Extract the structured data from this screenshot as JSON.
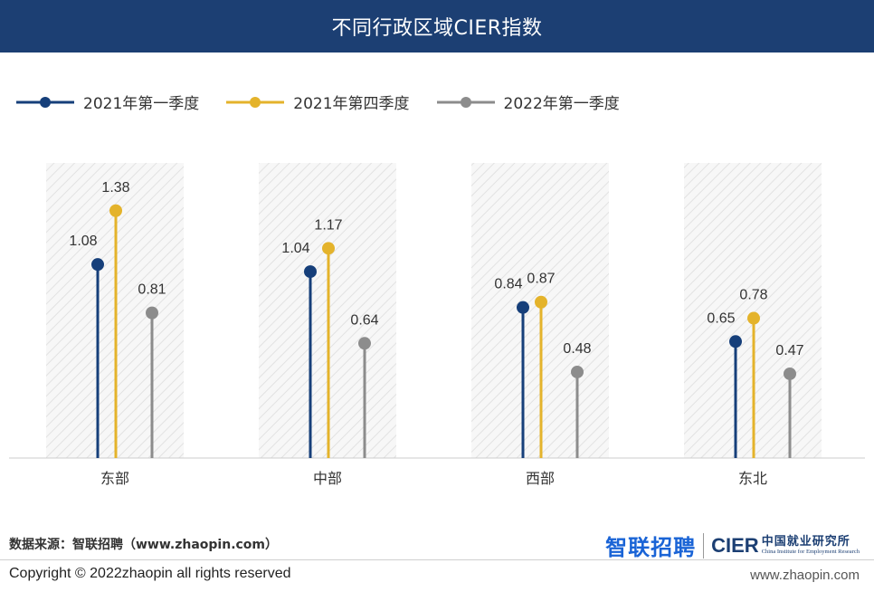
{
  "header": {
    "title": "不同行政区域CIER指数"
  },
  "colors": {
    "header_bg": "#1c3f73",
    "series": [
      "#163f7a",
      "#e4b32b",
      "#8c8c8c"
    ]
  },
  "chart_data": {
    "type": "lollipop",
    "title": "不同行政区域CIER指数",
    "categories": [
      "东部",
      "中部",
      "西部",
      "东北"
    ],
    "series": [
      {
        "name": "2021年第一季度",
        "values": [
          1.08,
          1.04,
          0.84,
          0.65
        ]
      },
      {
        "name": "2021年第四季度",
        "values": [
          1.38,
          1.17,
          0.87,
          0.78
        ]
      },
      {
        "name": "2022年第一季度",
        "values": [
          0.81,
          0.64,
          0.48,
          0.47
        ]
      }
    ],
    "xlabel": "",
    "ylabel": "",
    "ylim": [
      0,
      1.45
    ],
    "grid": false,
    "legend_position": "top-left"
  },
  "footer": {
    "source": "数据来源：智联招聘（www.zhaopin.com）",
    "logo_zhaopin": "智联招聘",
    "logo_cier": "CIER",
    "logo_cier_cn": "中国就业研究所",
    "logo_cier_en": "China Institute for Employment Research",
    "copyright": "Copyright ©  2022zhaopin all rights reserved",
    "website": "www.zhaopin.com"
  }
}
